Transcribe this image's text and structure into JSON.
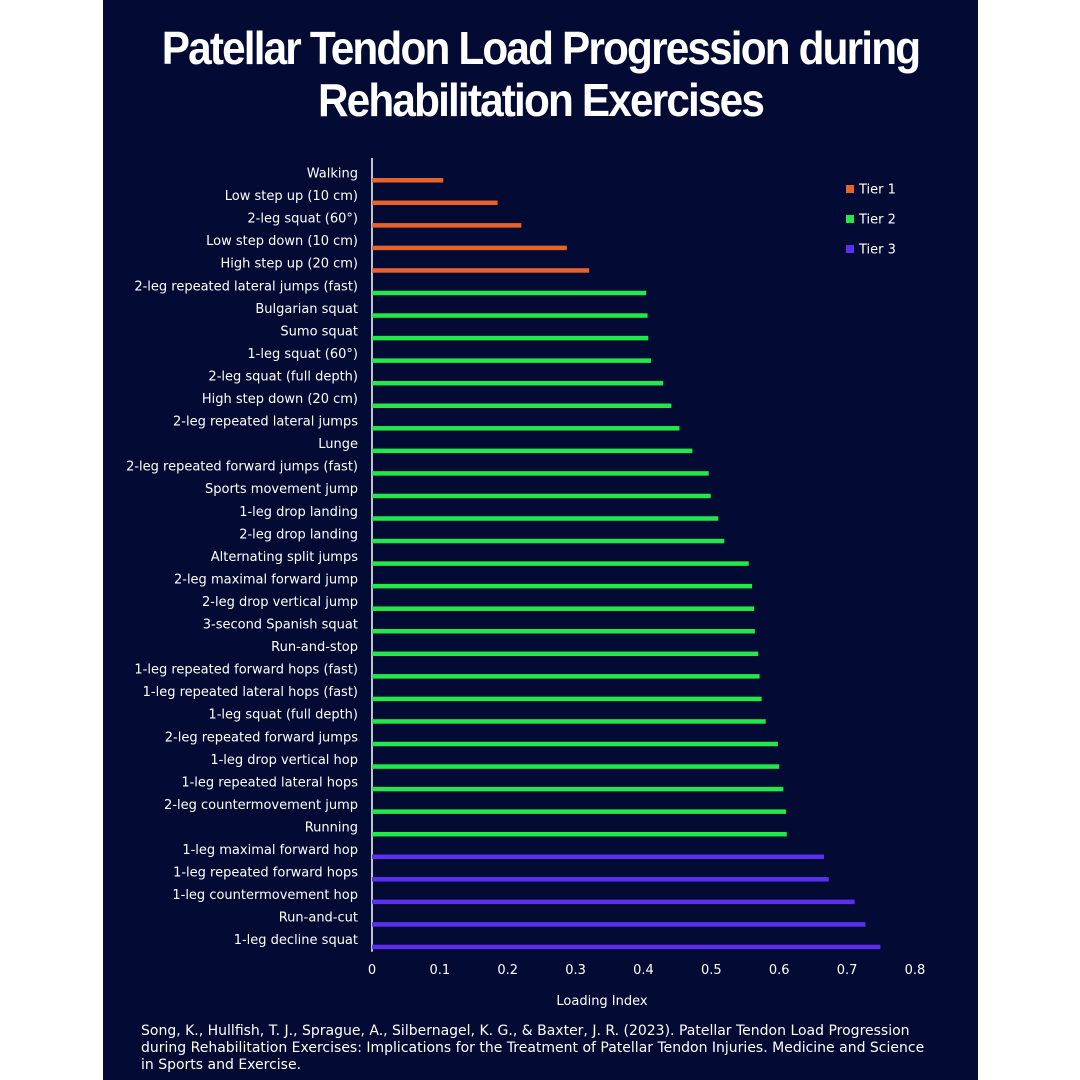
{
  "title_lines": [
    "Patellar Tendon Load Progression during",
    "Rehabilitation Exercises"
  ],
  "citation": "Song, K., Hullfish, T. J., Sprague, A., Silbernagel, K. G., & Baxter, J. R. (2023). Patellar Tendon Load Progression during Rehabilitation Exercises: Implications for the Treatment of Patellar Tendon Injuries. Medicine and Science in Sports and Exercise.",
  "colors": {
    "panel": "#030a33",
    "tier1": "#e8622c",
    "tier2": "#22e84a",
    "tier3": "#5a2ff0",
    "axis": "#ffffff"
  },
  "chart_data": {
    "type": "bar",
    "orientation": "horizontal",
    "xlabel": "Loading Index",
    "ylabel": "",
    "xlim": [
      0,
      0.8
    ],
    "xticks": [
      "0",
      "0.1",
      "0.2",
      "0.3",
      "0.4",
      "0.5",
      "0.6",
      "0.7",
      "0.8"
    ],
    "grid": false,
    "legend_position": "top-right",
    "legend": [
      {
        "name": "Tier 1",
        "color": "#e8622c"
      },
      {
        "name": "Tier 2",
        "color": "#22e84a"
      },
      {
        "name": "Tier 3",
        "color": "#5a2ff0"
      }
    ],
    "bars": [
      {
        "label": "Walking",
        "value": 0.105,
        "tier": 1
      },
      {
        "label": "Low step up (10 cm)",
        "value": 0.185,
        "tier": 1
      },
      {
        "label": "2-leg squat (60°)",
        "value": 0.22,
        "tier": 1
      },
      {
        "label": "Low step down (10 cm)",
        "value": 0.287,
        "tier": 1
      },
      {
        "label": "High step up (20 cm)",
        "value": 0.32,
        "tier": 1
      },
      {
        "label": "2-leg repeated lateral jumps (fast)",
        "value": 0.404,
        "tier": 2
      },
      {
        "label": "Bulgarian squat",
        "value": 0.406,
        "tier": 2
      },
      {
        "label": "Sumo squat",
        "value": 0.407,
        "tier": 2
      },
      {
        "label": "1-leg squat (60°)",
        "value": 0.411,
        "tier": 2
      },
      {
        "label": "2-leg squat (full depth)",
        "value": 0.429,
        "tier": 2
      },
      {
        "label": "High step down (20 cm)",
        "value": 0.441,
        "tier": 2
      },
      {
        "label": "2-leg repeated lateral jumps",
        "value": 0.453,
        "tier": 2
      },
      {
        "label": "Lunge",
        "value": 0.472,
        "tier": 2
      },
      {
        "label": "2-leg repeated forward jumps (fast)",
        "value": 0.496,
        "tier": 2
      },
      {
        "label": "Sports movement jump",
        "value": 0.499,
        "tier": 2
      },
      {
        "label": "1-leg drop landing",
        "value": 0.51,
        "tier": 2
      },
      {
        "label": "2-leg drop landing",
        "value": 0.519,
        "tier": 2
      },
      {
        "label": "Alternating split jumps",
        "value": 0.555,
        "tier": 2
      },
      {
        "label": "2-leg maximal forward jump",
        "value": 0.56,
        "tier": 2
      },
      {
        "label": "2-leg drop vertical jump",
        "value": 0.563,
        "tier": 2
      },
      {
        "label": "3-second Spanish squat",
        "value": 0.564,
        "tier": 2
      },
      {
        "label": "Run-and-stop",
        "value": 0.569,
        "tier": 2
      },
      {
        "label": "1-leg repeated forward hops (fast)",
        "value": 0.571,
        "tier": 2
      },
      {
        "label": "1-leg repeated lateral hops (fast)",
        "value": 0.574,
        "tier": 2
      },
      {
        "label": "1-leg squat (full depth)",
        "value": 0.58,
        "tier": 2
      },
      {
        "label": "2-leg repeated forward jumps",
        "value": 0.598,
        "tier": 2
      },
      {
        "label": "1-leg drop vertical hop",
        "value": 0.6,
        "tier": 2
      },
      {
        "label": "1-leg repeated lateral hops",
        "value": 0.606,
        "tier": 2
      },
      {
        "label": "2-leg countermovement jump",
        "value": 0.61,
        "tier": 2
      },
      {
        "label": "Running",
        "value": 0.611,
        "tier": 2
      },
      {
        "label": "1-leg maximal forward hop",
        "value": 0.666,
        "tier": 3
      },
      {
        "label": "1-leg repeated forward hops",
        "value": 0.673,
        "tier": 3
      },
      {
        "label": "1-leg countermovement hop",
        "value": 0.711,
        "tier": 3
      },
      {
        "label": "Run-and-cut",
        "value": 0.727,
        "tier": 3
      },
      {
        "label": "1-leg decline squat",
        "value": 0.749,
        "tier": 3
      }
    ]
  }
}
